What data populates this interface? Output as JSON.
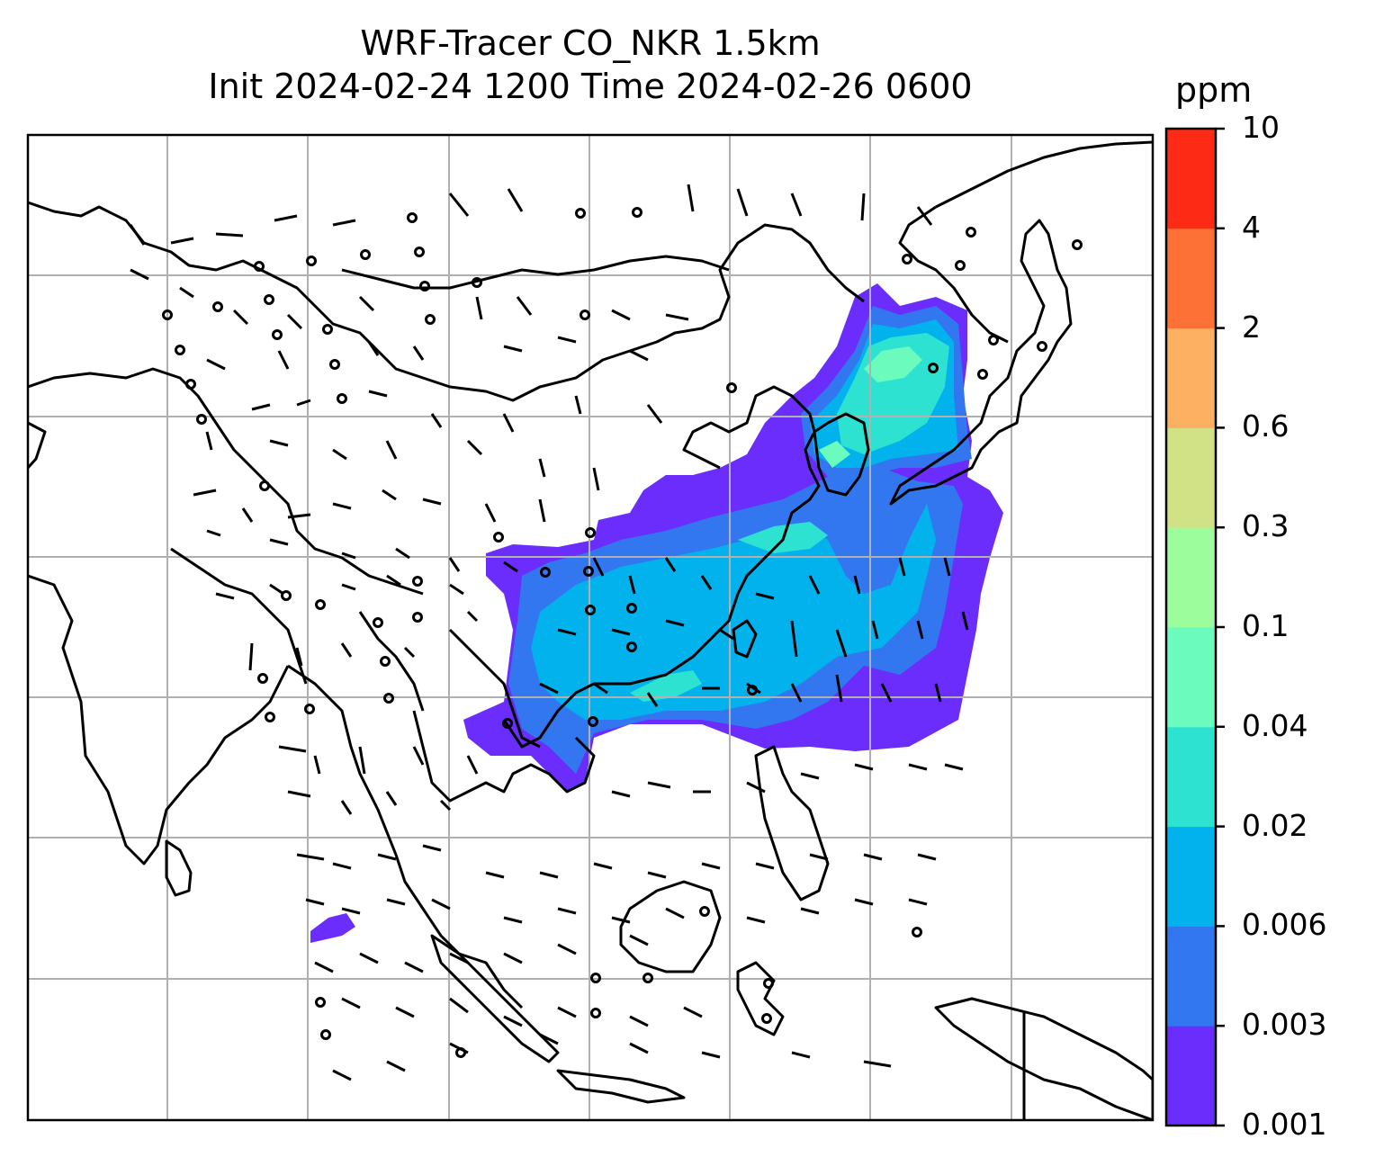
{
  "title": {
    "line1": "WRF-Tracer CO_NKR 1.5km",
    "line2": "Init 2024-02-24 1200 Time 2024-02-26 0600"
  },
  "colorbar": {
    "unit": "ppm",
    "levels": [
      {
        "label": "0.001",
        "color": "#6a2dfb"
      },
      {
        "label": "0.003",
        "color": "#3377f0"
      },
      {
        "label": "0.006",
        "color": "#02b2ec"
      },
      {
        "label": "0.02",
        "color": "#2ee2d2"
      },
      {
        "label": "0.04",
        "color": "#6bfcbd"
      },
      {
        "label": "0.1",
        "color": "#9cfd9c"
      },
      {
        "label": "0.3",
        "color": "#d1e186"
      },
      {
        "label": "0.6",
        "color": "#fdb061"
      },
      {
        "label": "2",
        "color": "#fd7137"
      },
      {
        "label": "4",
        "color": "#fd2a15"
      }
    ],
    "top_label": "10"
  },
  "map": {
    "gridlines": true,
    "line_color": "#000000",
    "grid_color": "#b0b0b0"
  }
}
